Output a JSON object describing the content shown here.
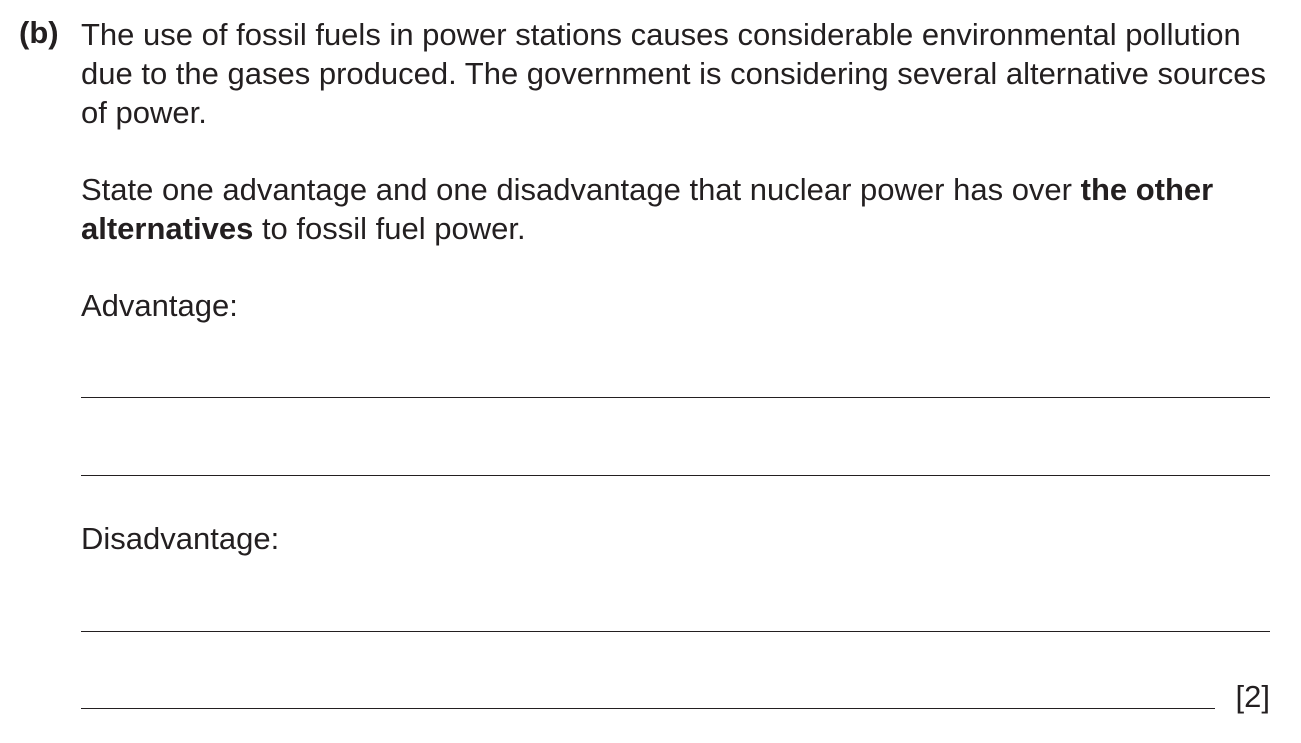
{
  "question": {
    "label": "(b)",
    "intro": "The use of fossil fuels in power stations causes considerable environmental pollution due to the gases produced. The government is considering several alternative sources of power.",
    "instruction": {
      "before_bold": "State one advantage and one disadvantage that nuclear power has over ",
      "bold": "the other alternatives",
      "after_bold": " to fossil fuel power."
    },
    "advantage_label": "Advantage:",
    "disadvantage_label": "Disadvantage:",
    "marks": "[2]"
  }
}
